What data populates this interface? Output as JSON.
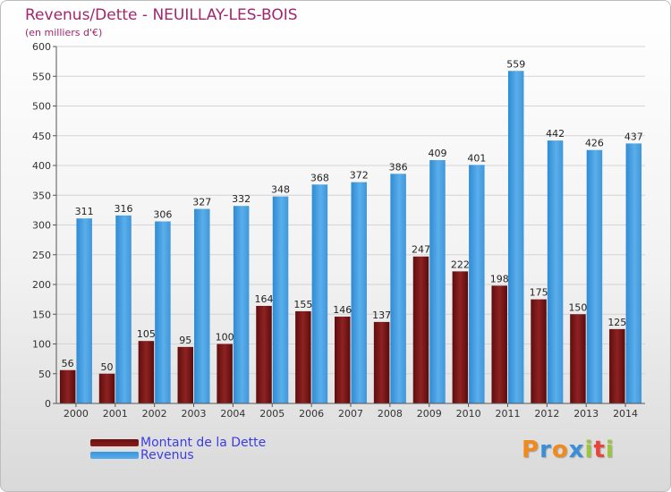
{
  "header": {
    "title": "Revenus/Dette - NEUILLAY-LES-BOIS",
    "subtitle": "(en milliers d'€)"
  },
  "colors": {
    "debt": "#8b1a1a",
    "revenue": "#4ba6e6",
    "title": "#a0276b",
    "legend_text": "#3c3ce6"
  },
  "chart_data": {
    "type": "bar",
    "categories": [
      "2000",
      "2001",
      "2002",
      "2003",
      "2004",
      "2005",
      "2006",
      "2007",
      "2008",
      "2009",
      "2010",
      "2011",
      "2012",
      "2013",
      "2014"
    ],
    "series": [
      {
        "name": "Montant de la Dette",
        "values": [
          56,
          50,
          105,
          95,
          100,
          164,
          155,
          146,
          137,
          247,
          222,
          198,
          175,
          150,
          125
        ]
      },
      {
        "name": "Revenus",
        "values": [
          311,
          316,
          306,
          327,
          332,
          348,
          368,
          372,
          386,
          409,
          401,
          559,
          442,
          426,
          437
        ]
      }
    ],
    "ylim": [
      0,
      600
    ],
    "yticks": [
      0,
      50,
      100,
      150,
      200,
      250,
      300,
      350,
      400,
      450,
      500,
      550,
      600
    ],
    "grid": true,
    "legend_position": "bottom-left"
  },
  "legend": {
    "debt_label": "Montant de la Dette",
    "revenue_label": "Revenus"
  },
  "logo": {
    "letters": [
      "P",
      "r",
      "o",
      "x",
      "i",
      "t",
      "i"
    ],
    "colors": [
      "#f08a1c",
      "#3a8fd8",
      "#f08a1c",
      "#3a8fd8",
      "#9bc53d",
      "#e8463c",
      "#9bc53d"
    ]
  }
}
